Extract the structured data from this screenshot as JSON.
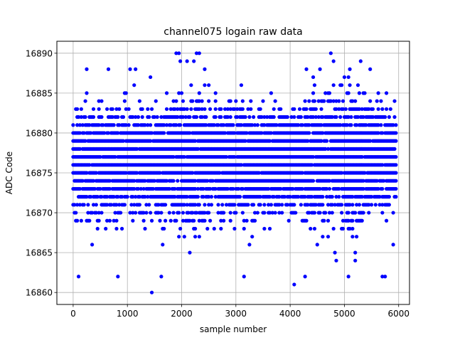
{
  "chart_data": {
    "type": "scatter",
    "title": "channel075 logain raw data",
    "xlabel": "sample number",
    "ylabel": "ADC Code",
    "xlim": [
      -300,
      6200
    ],
    "ylim": [
      16858.5,
      16891.5
    ],
    "x_ticks": [
      0,
      1000,
      2000,
      3000,
      4000,
      5000,
      6000
    ],
    "y_ticks": [
      16860,
      16865,
      16870,
      16875,
      16880,
      16885,
      16890
    ],
    "grid": true,
    "marker_color": "#0000ff",
    "sample_count": 5950,
    "sample_step": 25,
    "level_range": [
      16860,
      16890
    ],
    "extremes": [
      {
        "x": 1450,
        "y": 16860
      },
      {
        "x": 4075,
        "y": 16861
      },
      {
        "x": 1900,
        "y": 16890
      },
      {
        "x": 1950,
        "y": 16890
      },
      {
        "x": 2275,
        "y": 16890
      },
      {
        "x": 2325,
        "y": 16890
      },
      {
        "x": 4750,
        "y": 16890
      },
      {
        "x": 1975,
        "y": 16889
      },
      {
        "x": 2100,
        "y": 16889
      },
      {
        "x": 2225,
        "y": 16889
      },
      {
        "x": 4800,
        "y": 16889
      },
      {
        "x": 5300,
        "y": 16889
      },
      {
        "x": 250,
        "y": 16888
      },
      {
        "x": 650,
        "y": 16888
      },
      {
        "x": 1050,
        "y": 16888
      },
      {
        "x": 1150,
        "y": 16888
      },
      {
        "x": 4300,
        "y": 16888
      },
      {
        "x": 4550,
        "y": 16888
      },
      {
        "x": 5100,
        "y": 16888
      },
      {
        "x": 5475,
        "y": 16888
      },
      {
        "x": 100,
        "y": 16862
      },
      {
        "x": 825,
        "y": 16862
      },
      {
        "x": 1625,
        "y": 16862
      },
      {
        "x": 3150,
        "y": 16862
      },
      {
        "x": 4275,
        "y": 16862
      },
      {
        "x": 5075,
        "y": 16862
      },
      {
        "x": 5700,
        "y": 16862
      },
      {
        "x": 5750,
        "y": 16862
      }
    ]
  }
}
